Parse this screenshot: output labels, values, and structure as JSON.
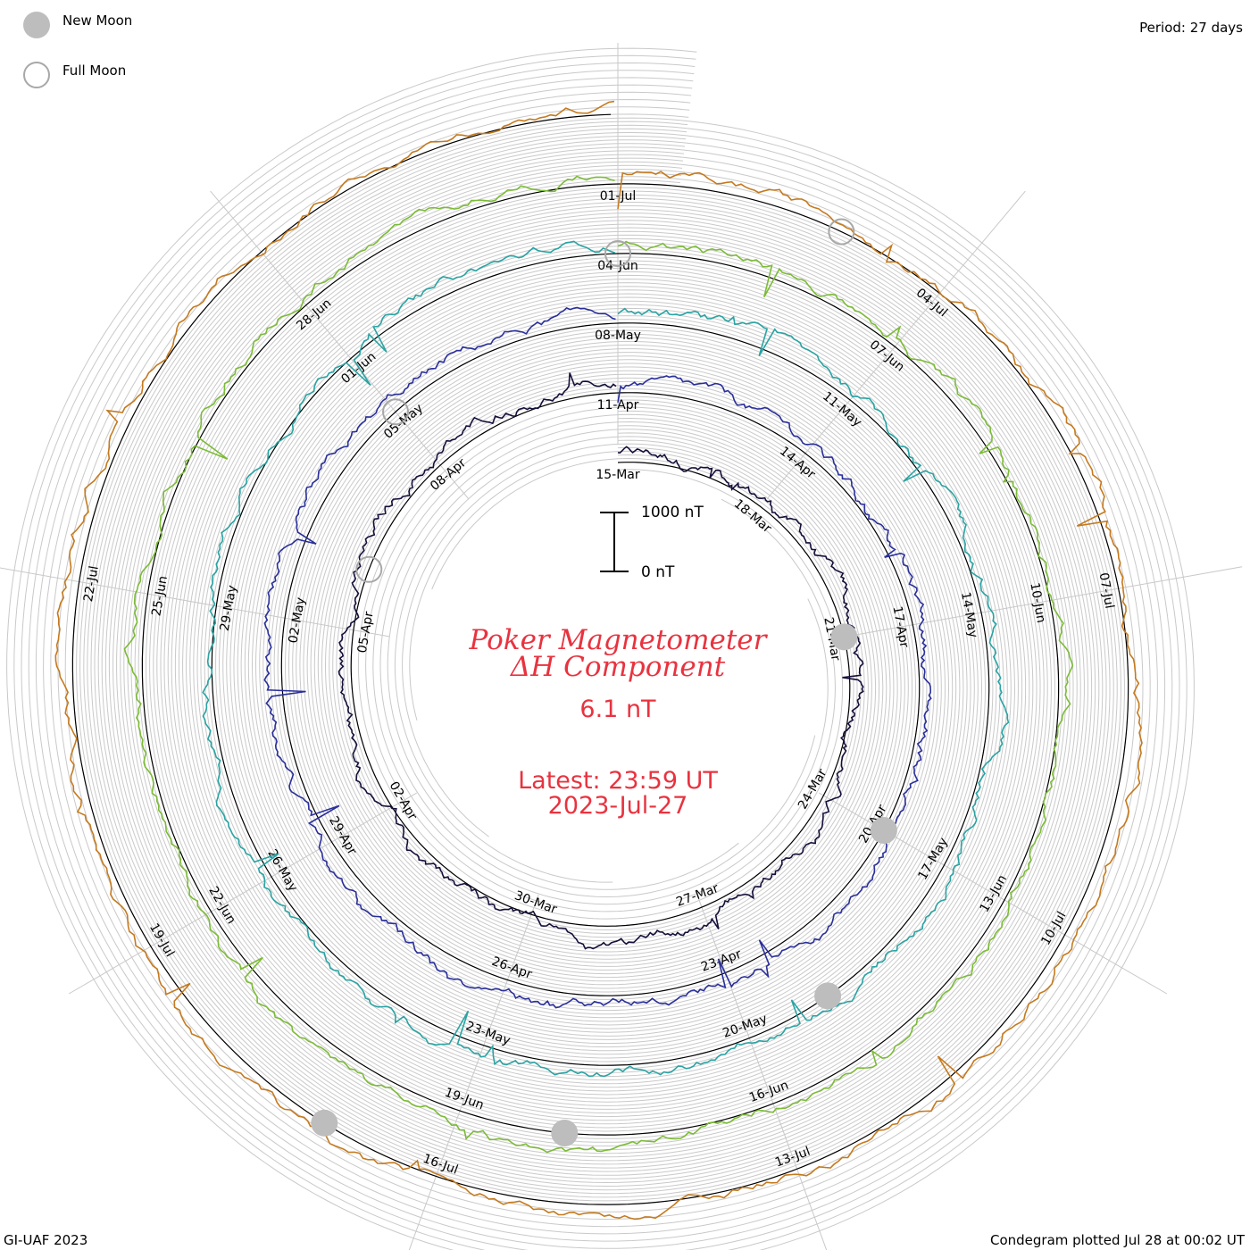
{
  "header": {
    "period_label": "Period: 27 days"
  },
  "legend": {
    "new_moon_label": "New Moon",
    "full_moon_label": "Full Moon",
    "new_moon_color": "#bdbdbd",
    "full_moon_stroke": "#a8a8a8"
  },
  "footer": {
    "credit": "GI-UAF 2023",
    "plotted": "Condegram plotted Jul 28 at 00:02 UT"
  },
  "center": {
    "title_line1": "Poker Magnetometer",
    "title_line2": "ΔH Component",
    "current_value": "6.1 nT",
    "latest_line1": "Latest: 23:59 UT",
    "latest_line2": "2023-Jul-27",
    "accent_color": "#e8333f",
    "scale_top_label": "1000 nT",
    "scale_bottom_label": "0 nT"
  },
  "chart_data": {
    "type": "line",
    "layout": "spiral condegram",
    "period_days": 27,
    "scale_nT": 1000,
    "cycles": [
      {
        "name": "Mar–Apr",
        "start": "2023-03-15",
        "color": "#15103a",
        "ticks": [
          "15-Mar",
          "18-Mar",
          "21-Mar",
          "24-Mar",
          "27-Mar",
          "30-Mar",
          "02-Apr",
          "05-Apr",
          "08-Apr"
        ]
      },
      {
        "name": "Apr–May",
        "start": "2023-04-11",
        "color": "#2a2f9a",
        "ticks": [
          "11-Apr",
          "14-Apr",
          "17-Apr",
          "20-Apr",
          "23-Apr",
          "26-Apr",
          "29-Apr",
          "02-May",
          "05-May"
        ]
      },
      {
        "name": "May",
        "start": "2023-05-08",
        "color": "#2aa3a3",
        "ticks": [
          "08-May",
          "11-May",
          "14-May",
          "17-May",
          "20-May",
          "23-May",
          "26-May",
          "29-May",
          "01-Jun"
        ]
      },
      {
        "name": "Jun",
        "start": "2023-06-04",
        "color": "#7cbb37",
        "ticks": [
          "04-Jun",
          "07-Jun",
          "10-Jun",
          "13-Jun",
          "16-Jun",
          "19-Jun",
          "22-Jun",
          "25-Jun",
          "28-Jun"
        ]
      },
      {
        "name": "Jul",
        "start": "2023-07-01",
        "color": "#c57a1f",
        "ticks": [
          "01-Jul",
          "04-Jul",
          "07-Jul",
          "10-Jul",
          "13-Jul",
          "16-Jul",
          "19-Jul",
          "22-Jul"
        ]
      }
    ],
    "new_moons": [
      "2023-03-21",
      "2023-04-20",
      "2023-05-19",
      "2023-06-18",
      "2023-07-17"
    ],
    "full_moons": [
      "2023-04-06",
      "2023-05-05",
      "2023-06-04",
      "2023-07-03"
    ]
  }
}
